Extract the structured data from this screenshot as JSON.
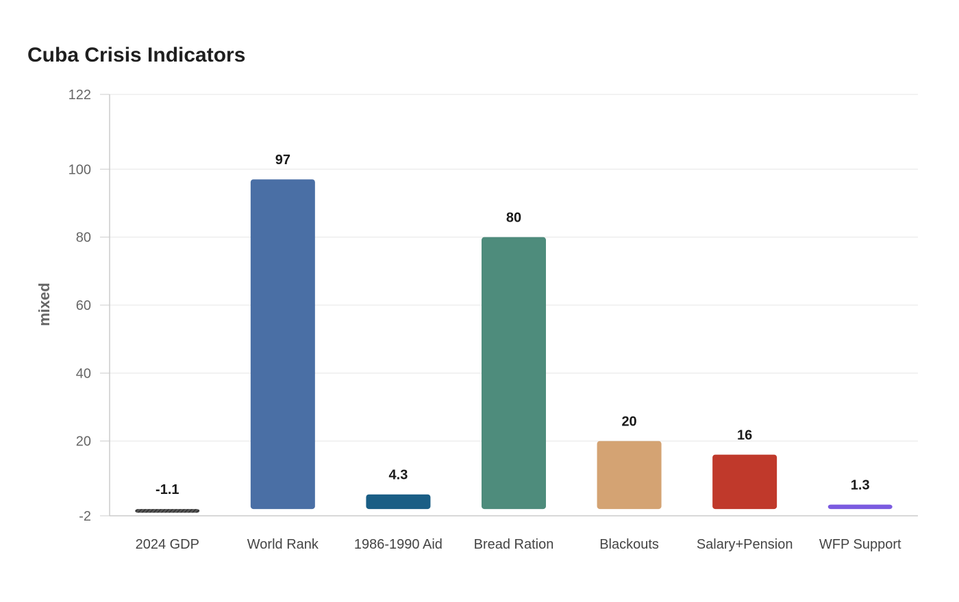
{
  "chart_data": {
    "type": "bar",
    "title": "Cuba Crisis Indicators",
    "xlabel": "",
    "ylabel": "mixed",
    "ylim": [
      -2,
      122
    ],
    "yticks": [
      -2,
      20,
      40,
      60,
      80,
      100,
      122
    ],
    "grid": true,
    "legend": "none",
    "categories": [
      "2024 GDP",
      "World Rank",
      "1986-1990 Aid",
      "Bread Ration",
      "Blackouts",
      "Salary+Pension",
      "WFP Support"
    ],
    "values": [
      -1.1,
      97,
      4.3,
      80,
      20,
      16,
      1.3
    ],
    "value_labels": [
      "-1.1",
      "97",
      "4.3",
      "80",
      "20",
      "16",
      "1.3"
    ],
    "colors": [
      "#333333",
      "#4a6fa5",
      "#1a5e85",
      "#4e8c7c",
      "#d4a373",
      "#c0392b",
      "#7b5be0"
    ]
  }
}
